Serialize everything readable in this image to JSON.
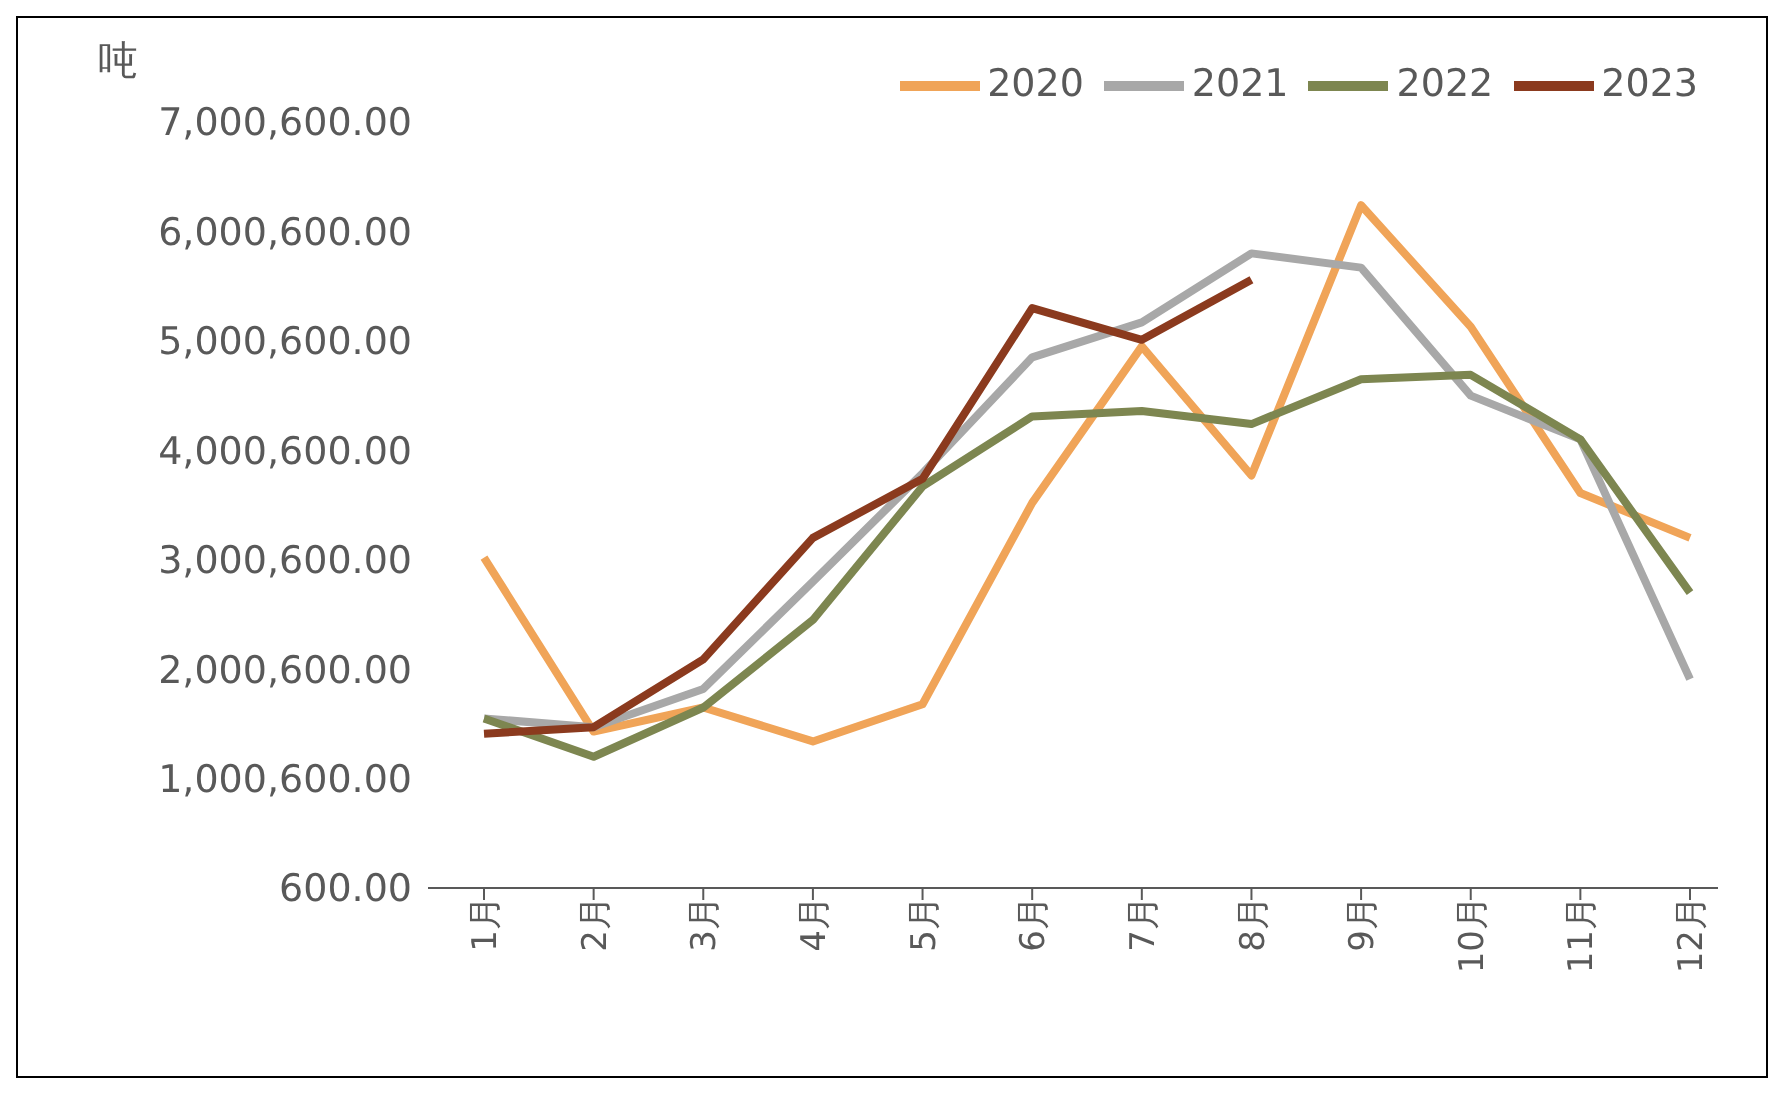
{
  "chart_data": {
    "type": "line",
    "ylabel": "吨",
    "categories": [
      "1月",
      "2月",
      "3月",
      "4月",
      "5月",
      "6月",
      "7月",
      "8月",
      "9月",
      "10月",
      "11月",
      "12月"
    ],
    "series": [
      {
        "name": "2020",
        "color": "#f0a458",
        "values": [
          3020000,
          1430000,
          1650000,
          1340000,
          1680000,
          3520000,
          4950000,
          3770000,
          6240000,
          5130000,
          3610000,
          3200000
        ]
      },
      {
        "name": "2021",
        "color": "#a8a8a8",
        "values": [
          1550000,
          1470000,
          1820000,
          2800000,
          3790000,
          4850000,
          5170000,
          5800000,
          5670000,
          4500000,
          4100000,
          1910000
        ]
      },
      {
        "name": "2022",
        "color": "#7d8650",
        "values": [
          1550000,
          1200000,
          1650000,
          2450000,
          3670000,
          4310000,
          4360000,
          4240000,
          4650000,
          4690000,
          4100000,
          2700000
        ]
      },
      {
        "name": "2023",
        "color": "#8b3a1e",
        "values": [
          1410000,
          1470000,
          2090000,
          3200000,
          3740000,
          5300000,
          5010000,
          5560000,
          null,
          null,
          null,
          null
        ]
      }
    ],
    "ylim": [
      600,
      7000600
    ],
    "yticks": [
      {
        "value": 600,
        "label": "600.00"
      },
      {
        "value": 1000600,
        "label": "1,000,600.00"
      },
      {
        "value": 2000600,
        "label": "2,000,600.00"
      },
      {
        "value": 3000600,
        "label": "3,000,600.00"
      },
      {
        "value": 4000600,
        "label": "4,000,600.00"
      },
      {
        "value": 5000600,
        "label": "5,000,600.00"
      },
      {
        "value": 6000600,
        "label": "6,000,600.00"
      },
      {
        "value": 7000600,
        "label": "7,000,600.00"
      }
    ],
    "grid": false,
    "legend": "top right",
    "marker": "none",
    "line_style": "solid"
  }
}
